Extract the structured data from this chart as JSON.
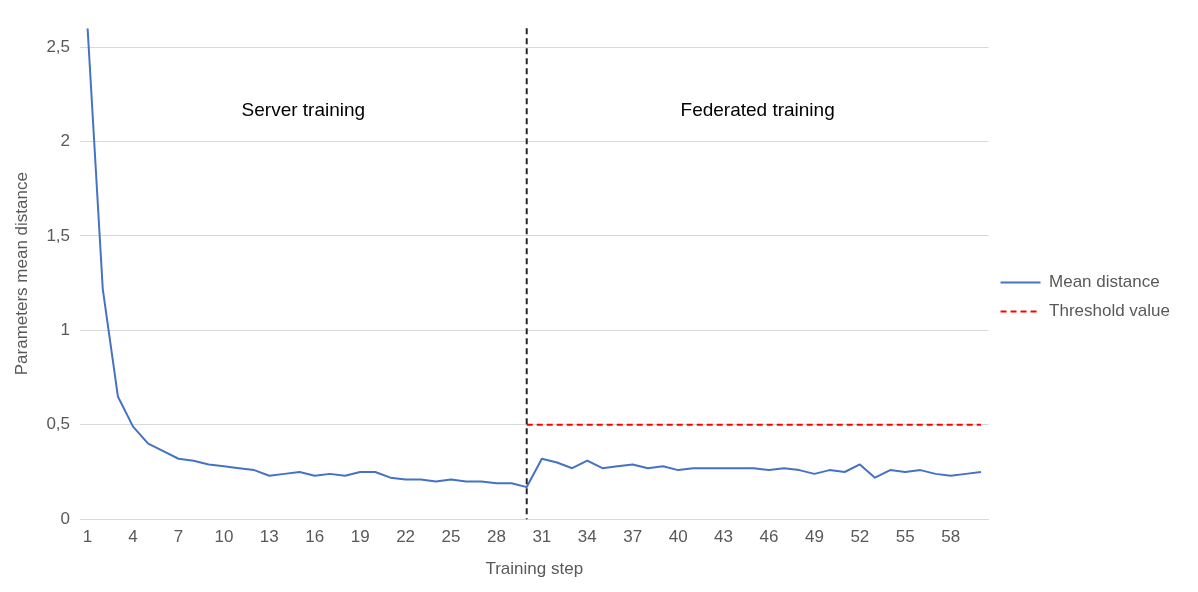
{
  "chart_data": {
    "type": "line",
    "xlabel": "Training step",
    "ylabel": "Parameters mean distance",
    "x": [
      1,
      2,
      3,
      4,
      5,
      6,
      7,
      8,
      9,
      10,
      11,
      12,
      13,
      14,
      15,
      16,
      17,
      18,
      19,
      20,
      21,
      22,
      23,
      24,
      25,
      26,
      27,
      28,
      29,
      30,
      31,
      32,
      33,
      34,
      35,
      36,
      37,
      38,
      39,
      40,
      41,
      42,
      43,
      44,
      45,
      46,
      47,
      48,
      49,
      50,
      51,
      52,
      53,
      54,
      55,
      56,
      57,
      58,
      59,
      60
    ],
    "series": [
      {
        "name": "Mean distance",
        "color": "#4472c4",
        "values": [
          2.6,
          1.22,
          0.65,
          0.49,
          0.4,
          0.36,
          0.32,
          0.31,
          0.29,
          0.28,
          0.27,
          0.26,
          0.23,
          0.24,
          0.25,
          0.23,
          0.24,
          0.23,
          0.25,
          0.25,
          0.22,
          0.21,
          0.21,
          0.2,
          0.21,
          0.2,
          0.2,
          0.19,
          0.19,
          0.17,
          0.32,
          0.3,
          0.27,
          0.31,
          0.27,
          0.28,
          0.29,
          0.27,
          0.28,
          0.26,
          0.27,
          0.27,
          0.27,
          0.27,
          0.27,
          0.26,
          0.27,
          0.26,
          0.24,
          0.26,
          0.25,
          0.29,
          0.22,
          0.26,
          0.25,
          0.26,
          0.24,
          0.23,
          0.24,
          0.25
        ]
      },
      {
        "name": "Threshold value",
        "color": "#ff0000",
        "line_style": "dashed",
        "x": [
          30,
          60
        ],
        "values": [
          0.5,
          0.5
        ]
      }
    ],
    "xlim": [
      0.5,
      60.5
    ],
    "xticks": [
      1,
      4,
      7,
      10,
      13,
      16,
      19,
      22,
      25,
      28,
      31,
      34,
      37,
      40,
      43,
      46,
      49,
      52,
      55,
      58
    ],
    "ylim": [
      0,
      2.6
    ],
    "yticks": [
      0,
      {
        "value": 0.5,
        "label": "0,5"
      },
      1,
      {
        "value": 1.5,
        "label": "1,5"
      },
      2,
      {
        "value": 2.5,
        "label": "2,5"
      }
    ],
    "ref_lines": [
      {
        "axis": "x",
        "value": 30,
        "color": "#262626",
        "line_style": "dashed"
      }
    ],
    "annotations": [
      "Server training",
      "Federated training"
    ],
    "grid": "y",
    "legend": "right",
    "marker": "none",
    "line_style": "solid"
  }
}
